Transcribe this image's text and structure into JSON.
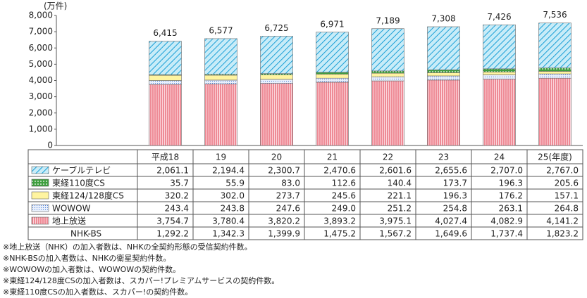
{
  "chart_data": {
    "type": "bar",
    "stacked": true,
    "y_unit_label": "(万件)",
    "categories": [
      "平成18",
      "19",
      "20",
      "21",
      "22",
      "23",
      "24",
      "25(年度)"
    ],
    "ylim": [
      0,
      8000
    ],
    "yticks": [
      0,
      {
        "value": 1000,
        "label": "1,000"
      },
      {
        "value": 2000,
        "label": "2,000"
      },
      {
        "value": 3000,
        "label": "3,000"
      },
      {
        "value": 4000,
        "label": "4,000"
      },
      {
        "value": 5000,
        "label": "5,000"
      },
      {
        "value": 6000,
        "label": "6,000"
      },
      {
        "value": 7000,
        "label": "7,000"
      },
      {
        "value": 8000,
        "label": "8,000"
      }
    ],
    "series": [
      {
        "name": "ケーブルテレビ",
        "color": "#1a9fd6",
        "pattern": "hatch",
        "values": [
          2061.1,
          2194.4,
          2300.7,
          2470.6,
          2601.6,
          2655.6,
          2707.0,
          2767.0
        ],
        "value_labels": [
          "2,061.1",
          "2,194.4",
          "2,300.7",
          "2,470.6",
          "2,601.6",
          "2,655.6",
          "2,707.0",
          "2,767.0"
        ]
      },
      {
        "name": "東経110度CS",
        "color": "#3f9f3f",
        "pattern": "dots",
        "values": [
          35.7,
          55.9,
          83.0,
          112.6,
          140.4,
          173.7,
          196.3,
          205.6
        ],
        "value_labels": [
          "35.7",
          "55.9",
          "83.0",
          "112.6",
          "140.4",
          "173.7",
          "196.3",
          "205.6"
        ]
      },
      {
        "name": "東経124/128度CS",
        "color": "#fff4a0",
        "pattern": "solid",
        "values": [
          320.2,
          302.0,
          273.7,
          245.6,
          221.1,
          196.3,
          176.2,
          157.1
        ],
        "value_labels": [
          "320.2",
          "302.0",
          "273.7",
          "245.6",
          "221.1",
          "196.3",
          "176.2",
          "157.1"
        ]
      },
      {
        "name": "WOWOW",
        "color": "#4b7fd6",
        "pattern": "grid",
        "values": [
          243.4,
          243.8,
          247.6,
          249.0,
          251.2,
          254.8,
          263.1,
          264.8
        ],
        "value_labels": [
          "243.4",
          "243.8",
          "247.6",
          "249.0",
          "251.2",
          "254.8",
          "263.1",
          "264.8"
        ]
      },
      {
        "name": "地上放送",
        "color": "#e0404f",
        "pattern": "stripes",
        "values": [
          3754.7,
          3780.4,
          3820.2,
          3893.2,
          3975.1,
          4027.4,
          4082.9,
          4141.2
        ],
        "value_labels": [
          "3,754.7",
          "3,780.4",
          "3,820.2",
          "3,893.2",
          "3,975.1",
          "4,027.4",
          "4,082.9",
          "4,141.2"
        ]
      }
    ],
    "table_only_series": {
      "name": "NHK-BS",
      "values": [
        1292.2,
        1342.3,
        1399.9,
        1475.2,
        1567.2,
        1649.6,
        1737.4,
        1823.2
      ],
      "value_labels": [
        "1,292.2",
        "1,342.3",
        "1,399.9",
        "1,475.2",
        "1,567.2",
        "1,649.6",
        "1,737.4",
        "1,823.2"
      ]
    },
    "totals": [
      6415,
      6577,
      6725,
      6971,
      7189,
      7308,
      7426,
      7536
    ],
    "total_labels": [
      "6,415",
      "6,577",
      "6,725",
      "6,971",
      "7,189",
      "7,308",
      "7,426",
      "7,536"
    ],
    "footnotes": [
      "※地上放送（NHK）の加入者数は、NHKの全契約形態の受信契約件数。",
      "※NHK-BSの加入者数は、NHKの衛星契約件数。",
      "※WOWOWの加入者数は、WOWOWの契約件数。",
      "※東経124/128度CSの加入者数は、スカパー!プレミアムサービスの契約件数。",
      "※東経110度CSの加入者数は、スカパー!の契約件数。"
    ]
  }
}
